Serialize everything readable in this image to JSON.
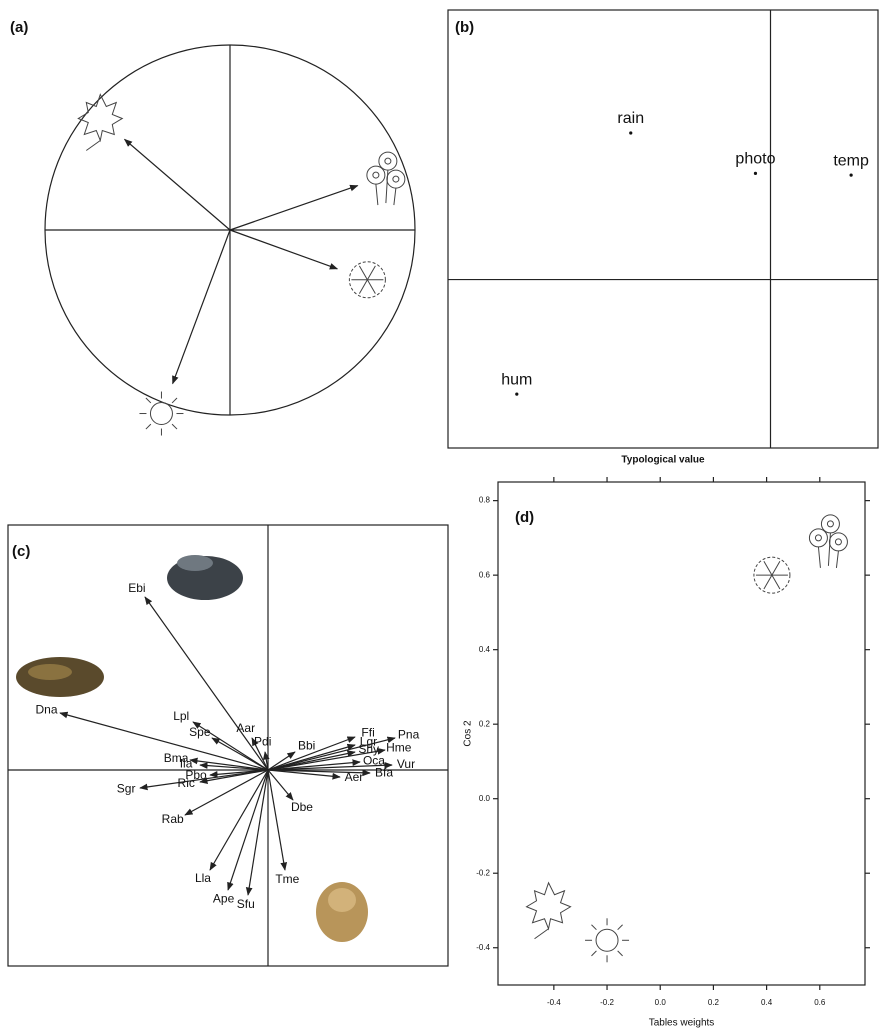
{
  "chart_data": [
    {
      "type": "vector",
      "panel_label": "(a)",
      "xlim": [
        -1,
        1
      ],
      "ylim": [
        -1,
        1
      ],
      "x": [
        -0.57,
        0.69,
        0.58,
        -0.31
      ],
      "y": [
        0.49,
        0.24,
        -0.21,
        -0.83
      ]
    },
    {
      "type": "scatter",
      "panel_label": "(b)",
      "xlabel": "Typological value",
      "xlim": [
        -1.5,
        0.5
      ],
      "ylim": [
        -1,
        1.6
      ],
      "labels": [
        "rain",
        "photo",
        "temp",
        "hum"
      ],
      "x": [
        -0.65,
        -0.07,
        0.375,
        -1.18
      ],
      "y": [
        0.87,
        0.63,
        0.62,
        -0.68
      ]
    },
    {
      "type": "vector",
      "panel_label": "(c)",
      "xlim": [
        -2.6,
        1.8
      ],
      "ylim": [
        -1.96,
        2.45
      ],
      "labels": [
        "Ebi",
        "Dna",
        "Lpl",
        "Spe",
        "Aar",
        "Pdi",
        "Bbi",
        "Ffi",
        "Lgr",
        "Pna",
        "Shy",
        "Hme",
        "Oca",
        "Vur",
        "Bfa",
        "Aer",
        "Bma",
        "Ila",
        "Pbo",
        "Sgr",
        "Ric",
        "Rab",
        "Dbe",
        "Lla",
        "Ape",
        "Sfu",
        "Tme"
      ],
      "x": [
        -1.23,
        -2.08,
        -0.75,
        -0.56,
        -0.16,
        -0.03,
        0.27,
        0.87,
        0.87,
        1.27,
        0.87,
        1.17,
        0.92,
        1.24,
        1.02,
        0.72,
        -0.78,
        -0.68,
        -0.58,
        -1.28,
        -0.68,
        -0.83,
        0.25,
        -0.58,
        -0.4,
        -0.2,
        0.17
      ],
      "y": [
        1.73,
        0.57,
        0.48,
        0.32,
        0.32,
        0.18,
        0.18,
        0.33,
        0.25,
        0.32,
        0.18,
        0.2,
        0.08,
        0.05,
        -0.03,
        -0.07,
        0.1,
        0.05,
        -0.05,
        -0.18,
        -0.12,
        -0.45,
        -0.3,
        -1.0,
        -1.2,
        -1.25,
        -1.0
      ]
    },
    {
      "type": "scatter",
      "panel_label": "(d)",
      "xlabel": "Tables weights",
      "ylabel": "Cos 2",
      "xlim": [
        -0.61,
        0.77
      ],
      "ylim": [
        -0.5,
        0.85
      ],
      "xticks": [
        -0.4,
        -0.2,
        {
          "value": 0,
          "label": "0.0"
        },
        0.2,
        0.4,
        0.6
      ],
      "yticks": [
        -0.4,
        -0.2,
        {
          "value": 0,
          "label": "0.0"
        },
        0.2,
        0.4,
        0.6,
        0.8
      ],
      "x": [
        0.64,
        0.42,
        -0.42,
        -0.2
      ],
      "y": [
        0.7,
        0.6,
        -0.29,
        -0.38
      ]
    }
  ]
}
